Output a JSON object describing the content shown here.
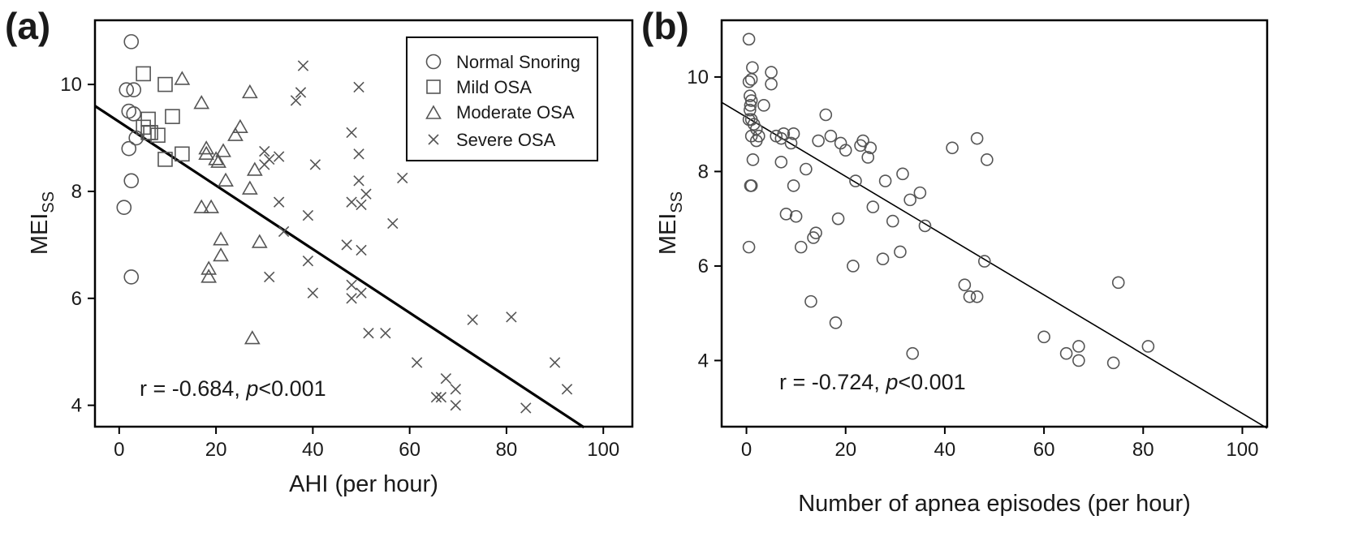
{
  "chart_data": [
    {
      "type": "scatter",
      "panel_label": "(a)",
      "xlabel": "AHI (per hour)",
      "ylabel": "MEI",
      "ylabel_sub": "SS",
      "xlim": [
        -5,
        106
      ],
      "ylim": [
        3.6,
        11.2
      ],
      "xticks": [
        0,
        20,
        40,
        60,
        80,
        100
      ],
      "yticks": [
        4,
        6,
        8,
        10
      ],
      "annotation": {
        "prefix": "r = -0.684, ",
        "p": "p",
        "suffix": "<0.001"
      },
      "regression": {
        "intercept": 9.3,
        "slope": -0.0595,
        "x_range": [
          -5,
          96
        ]
      },
      "series": [
        {
          "name": "Normal Snoring",
          "marker": "circle",
          "points": [
            [
              1,
              7.7
            ],
            [
              1.5,
              9.9
            ],
            [
              2,
              9.5
            ],
            [
              2,
              8.8
            ],
            [
              2.5,
              10.8
            ],
            [
              2.5,
              8.2
            ],
            [
              2.5,
              6.4
            ],
            [
              3,
              9.45
            ],
            [
              3,
              9.9
            ],
            [
              3.5,
              9.0
            ]
          ]
        },
        {
          "name": "Mild OSA",
          "marker": "square",
          "points": [
            [
              5,
              10.2
            ],
            [
              5,
              9.2
            ],
            [
              6,
              9.35
            ],
            [
              6,
              9.1
            ],
            [
              6.5,
              9.1
            ],
            [
              8,
              9.05
            ],
            [
              9.5,
              8.6
            ],
            [
              9.5,
              10.0
            ],
            [
              11,
              9.4
            ],
            [
              13,
              8.7
            ]
          ]
        },
        {
          "name": "Moderate OSA",
          "marker": "triangle",
          "points": [
            [
              13,
              10.1
            ],
            [
              17,
              9.65
            ],
            [
              17,
              7.7
            ],
            [
              18,
              8.8
            ],
            [
              18,
              8.7
            ],
            [
              18.5,
              6.55
            ],
            [
              18.5,
              6.4
            ],
            [
              19,
              7.7
            ],
            [
              20,
              8.6
            ],
            [
              20.5,
              8.55
            ],
            [
              21,
              7.1
            ],
            [
              21,
              6.8
            ],
            [
              21.5,
              8.75
            ],
            [
              22,
              8.2
            ],
            [
              24,
              9.05
            ],
            [
              25,
              9.2
            ],
            [
              27,
              8.05
            ],
            [
              27,
              9.85
            ],
            [
              27.5,
              5.25
            ],
            [
              28,
              8.4
            ],
            [
              29,
              7.05
            ]
          ]
        },
        {
          "name": "Severe OSA",
          "marker": "x",
          "points": [
            [
              30,
              8.75
            ],
            [
              30,
              8.5
            ],
            [
              31,
              8.6
            ],
            [
              31,
              6.4
            ],
            [
              33,
              8.65
            ],
            [
              33,
              7.8
            ],
            [
              34,
              7.25
            ],
            [
              36.5,
              9.7
            ],
            [
              37.5,
              9.85
            ],
            [
              38,
              10.35
            ],
            [
              39,
              6.7
            ],
            [
              39,
              7.55
            ],
            [
              40,
              6.1
            ],
            [
              40.5,
              8.5
            ],
            [
              47,
              7.0
            ],
            [
              48,
              9.1
            ],
            [
              48,
              7.8
            ],
            [
              48,
              6.25
            ],
            [
              48,
              6.0
            ],
            [
              49.5,
              9.95
            ],
            [
              49.5,
              8.7
            ],
            [
              49.5,
              8.2
            ],
            [
              50,
              7.75
            ],
            [
              50,
              6.9
            ],
            [
              50,
              6.1
            ],
            [
              51,
              7.95
            ],
            [
              51.5,
              5.35
            ],
            [
              55,
              5.35
            ],
            [
              56.5,
              7.4
            ],
            [
              58.5,
              8.25
            ],
            [
              61.5,
              4.8
            ],
            [
              65.5,
              4.15
            ],
            [
              66.5,
              4.15
            ],
            [
              67.5,
              4.5
            ],
            [
              69.5,
              4.3
            ],
            [
              69.5,
              4.0
            ],
            [
              73,
              5.6
            ],
            [
              81,
              5.65
            ],
            [
              84,
              3.95
            ],
            [
              90,
              4.8
            ],
            [
              92.5,
              4.3
            ]
          ]
        }
      ],
      "legend": [
        "Normal Snoring",
        "Mild OSA",
        "Moderate OSA",
        "Severe OSA"
      ]
    },
    {
      "type": "scatter",
      "panel_label": "(b)",
      "xlabel": "Number of apnea episodes (per hour)",
      "ylabel": "MEI",
      "ylabel_sub": "SS",
      "xlim": [
        -5,
        105
      ],
      "ylim": [
        2.6,
        11.2
      ],
      "xticks": [
        0,
        20,
        40,
        60,
        80,
        100
      ],
      "yticks": [
        4,
        6,
        8,
        10
      ],
      "annotation": {
        "prefix": "r = -0.724, ",
        "p": "p",
        "suffix": "<0.001"
      },
      "regression": {
        "intercept": 9.15,
        "slope": -0.0627,
        "x_range": [
          -5,
          105
        ]
      },
      "series": [
        {
          "name": "Apnea episodes",
          "marker": "circle",
          "points": [
            [
              0.5,
              10.8
            ],
            [
              0.5,
              9.9
            ],
            [
              0.5,
              9.1
            ],
            [
              0.5,
              6.4
            ],
            [
              0.7,
              9.6
            ],
            [
              0.7,
              9.3
            ],
            [
              0.8,
              9.4
            ],
            [
              0.8,
              7.7
            ],
            [
              1,
              9.95
            ],
            [
              1,
              9.5
            ],
            [
              1,
              9.1
            ],
            [
              1,
              8.75
            ],
            [
              1,
              7.7
            ],
            [
              1.2,
              10.2
            ],
            [
              1.3,
              8.25
            ],
            [
              1.5,
              9.0
            ],
            [
              2,
              8.9
            ],
            [
              2,
              8.65
            ],
            [
              2.5,
              8.75
            ],
            [
              3.5,
              9.4
            ],
            [
              5,
              10.1
            ],
            [
              5,
              9.85
            ],
            [
              6,
              8.75
            ],
            [
              7,
              8.2
            ],
            [
              7,
              8.7
            ],
            [
              7.5,
              8.8
            ],
            [
              8,
              7.1
            ],
            [
              9,
              8.6
            ],
            [
              9.5,
              8.8
            ],
            [
              9.5,
              7.7
            ],
            [
              10,
              7.05
            ],
            [
              11,
              6.4
            ],
            [
              12,
              8.05
            ],
            [
              13,
              5.25
            ],
            [
              13.5,
              6.6
            ],
            [
              14,
              6.7
            ],
            [
              14.5,
              8.65
            ],
            [
              16,
              9.2
            ],
            [
              17,
              8.75
            ],
            [
              18,
              4.8
            ],
            [
              18.5,
              7.0
            ],
            [
              19,
              8.6
            ],
            [
              20,
              8.45
            ],
            [
              21.5,
              6.0
            ],
            [
              22,
              7.8
            ],
            [
              23,
              8.55
            ],
            [
              23.5,
              8.65
            ],
            [
              24.5,
              8.3
            ],
            [
              25,
              8.5
            ],
            [
              25.5,
              7.25
            ],
            [
              27.5,
              6.15
            ],
            [
              28,
              7.8
            ],
            [
              29.5,
              6.95
            ],
            [
              31,
              6.3
            ],
            [
              31.5,
              7.95
            ],
            [
              33,
              7.4
            ],
            [
              33.5,
              4.15
            ],
            [
              35,
              7.55
            ],
            [
              36,
              6.85
            ],
            [
              41.5,
              8.5
            ],
            [
              44,
              5.6
            ],
            [
              45,
              5.35
            ],
            [
              46.5,
              5.35
            ],
            [
              46.5,
              8.7
            ],
            [
              48,
              6.1
            ],
            [
              48.5,
              8.25
            ],
            [
              60,
              4.5
            ],
            [
              64.5,
              4.15
            ],
            [
              67,
              4.3
            ],
            [
              67,
              4.0
            ],
            [
              74,
              3.95
            ],
            [
              75,
              5.65
            ],
            [
              81,
              4.3
            ]
          ]
        }
      ]
    }
  ]
}
